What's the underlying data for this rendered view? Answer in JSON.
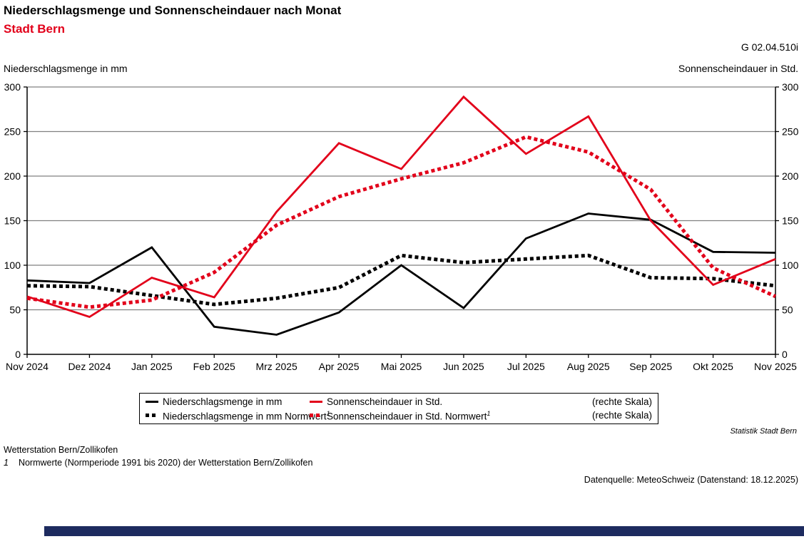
{
  "header": {
    "title": "Niederschlagsmenge und Sonnenscheindauer nach Monat",
    "subtitle": "Stadt Bern",
    "chart_code": "G 02.04.510i"
  },
  "chart_data": {
    "type": "line",
    "title": "Niederschlagsmenge und Sonnenscheindauer nach Monat",
    "subtitle": "Stadt Bern",
    "ylabel_left": "Niederschlagsmenge in mm",
    "ylabel_right": "Sonnenscheindauer in Std.",
    "ylim": [
      0,
      300
    ],
    "ytick_step": 50,
    "grid": true,
    "legend_position": "bottom",
    "categories": [
      "Nov 2024",
      "Dez 2024",
      "Jan 2025",
      "Feb 2025",
      "Mrz 2025",
      "Apr 2025",
      "Mai 2025",
      "Jun 2025",
      "Jul 2025",
      "Aug 2025",
      "Sep 2025",
      "Okt 2025",
      "Nov 2025"
    ],
    "series": [
      {
        "name": "Niederschlagsmenge in mm",
        "axis": "left",
        "style": "solid",
        "color": "#000000",
        "values": [
          83,
          80,
          120,
          31,
          22,
          47,
          100,
          52,
          130,
          158,
          151,
          115,
          114
        ]
      },
      {
        "name": "Sonnenscheindauer in Std.",
        "axis": "right",
        "style": "solid",
        "color": "#e2001a",
        "note": "(rechte Skala)",
        "values": [
          65,
          42,
          86,
          64,
          160,
          237,
          208,
          289,
          225,
          267,
          150,
          78,
          107
        ]
      },
      {
        "name": "Niederschlagsmenge in mm Normwert",
        "footnote_marker": "1",
        "axis": "left",
        "style": "dotted",
        "color": "#000000",
        "values": [
          77,
          76,
          66,
          56,
          63,
          75,
          111,
          103,
          107,
          111,
          86,
          85,
          77
        ]
      },
      {
        "name": "Sonnenscheindauer in Std. Normwert",
        "footnote_marker": "1",
        "axis": "right",
        "style": "dotted",
        "color": "#e2001a",
        "note": "(rechte Skala)",
        "values": [
          63,
          53,
          61,
          92,
          145,
          177,
          197,
          215,
          244,
          227,
          185,
          97,
          65
        ]
      }
    ],
    "colors": {
      "accent_red": "#e2001a",
      "gridline": "#808080",
      "axis": "#000000",
      "footer_bar": "#1d2b5f"
    }
  },
  "footer": {
    "attribution": "Statistik Stadt Bern",
    "station": "Wetterstation Bern/Zollikofen",
    "footnote_marker": "1",
    "footnote": "Normwerte (Normperiode 1991 bis 2020) der Wetterstation Bern/Zollikofen",
    "source": "Datenquelle: MeteoSchweiz (Datenstand: 18.12.2025)"
  }
}
